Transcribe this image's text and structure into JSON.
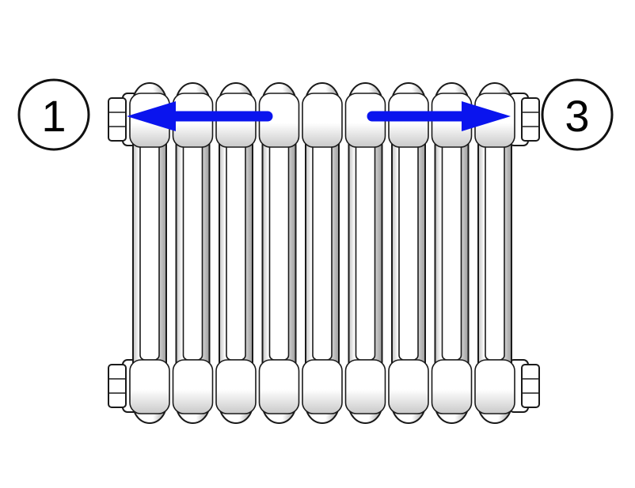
{
  "labels": {
    "left": "1",
    "right": "3"
  },
  "radiator": {
    "columns": 9
  },
  "colors": {
    "arrow": "#0a14ee",
    "outline": "#1a1a1a",
    "body": "#ffffff",
    "shade": "#b9b9b9"
  },
  "arrows": [
    {
      "name": "left-arrow",
      "direction": "left"
    },
    {
      "name": "right-arrow",
      "direction": "right"
    }
  ]
}
